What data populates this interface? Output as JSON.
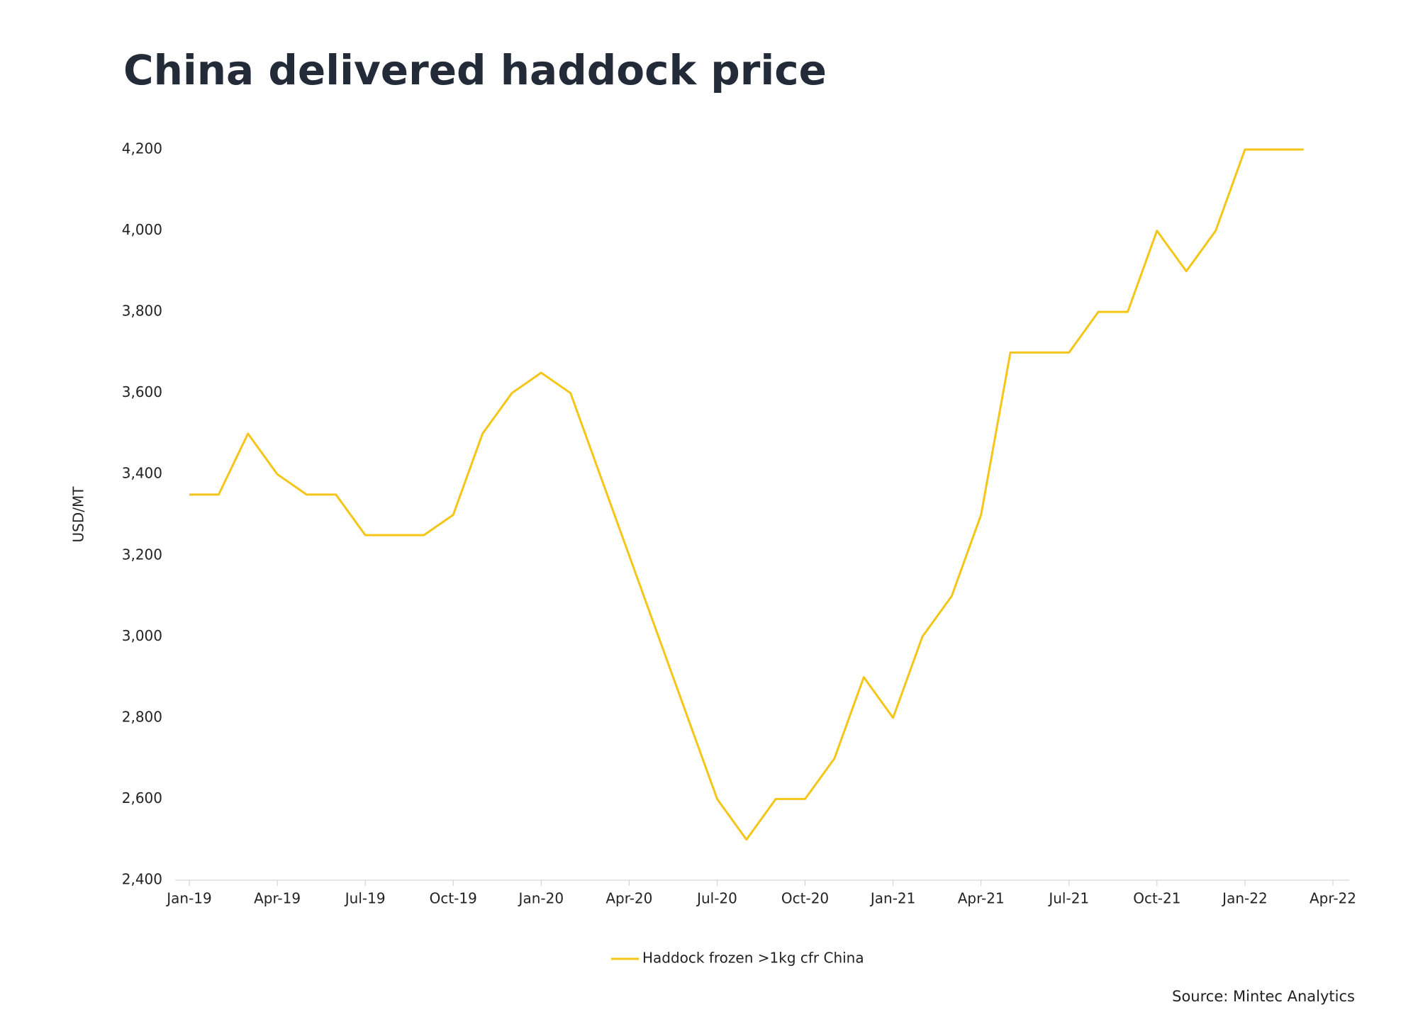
{
  "chart_data": {
    "type": "line",
    "title": "China delivered haddock price",
    "y_label": "USD/MT",
    "source": "Source: Mintec Analytics",
    "x": [
      "2019-01",
      "2019-02",
      "2019-03",
      "2019-04",
      "2019-05",
      "2019-06",
      "2019-07",
      "2019-08",
      "2019-09",
      "2019-10",
      "2019-11",
      "2019-12",
      "2020-01",
      "2020-02",
      "2020-03",
      "2020-04",
      "2020-05",
      "2020-06",
      "2020-07",
      "2020-08",
      "2020-09",
      "2020-10",
      "2020-11",
      "2020-12",
      "2021-01",
      "2021-02",
      "2021-03",
      "2021-04",
      "2021-05",
      "2021-06",
      "2021-07",
      "2021-08",
      "2021-09",
      "2021-10",
      "2021-11",
      "2021-12",
      "2022-01",
      "2022-02",
      "2022-03"
    ],
    "series": [
      {
        "name": "Haddock frozen >1kg cfr China",
        "color": "#f5c518",
        "values": [
          3350,
          3350,
          3500,
          3400,
          3350,
          3350,
          3250,
          3250,
          3250,
          3300,
          3500,
          3600,
          3650,
          3600,
          3400,
          3200,
          3000,
          2800,
          2600,
          2500,
          2600,
          2600,
          2700,
          2900,
          2800,
          3000,
          3100,
          3300,
          3700,
          3700,
          3700,
          3800,
          3800,
          4000,
          3900,
          4000,
          4200,
          4200,
          4200
        ]
      }
    ],
    "xlim": [
      "2019-01",
      "2022-04"
    ],
    "xticks": [
      {
        "value": "2019-01",
        "label": "Jan-19"
      },
      {
        "value": "2019-04",
        "label": "Apr-19"
      },
      {
        "value": "2019-07",
        "label": "Jul-19"
      },
      {
        "value": "2019-10",
        "label": "Oct-19"
      },
      {
        "value": "2020-01",
        "label": "Jan-20"
      },
      {
        "value": "2020-04",
        "label": "Apr-20"
      },
      {
        "value": "2020-07",
        "label": "Jul-20"
      },
      {
        "value": "2020-10",
        "label": "Oct-20"
      },
      {
        "value": "2021-01",
        "label": "Jan-21"
      },
      {
        "value": "2021-04",
        "label": "Apr-21"
      },
      {
        "value": "2021-07",
        "label": "Jul-21"
      },
      {
        "value": "2021-10",
        "label": "Oct-21"
      },
      {
        "value": "2022-01",
        "label": "Jan-22"
      },
      {
        "value": "2022-04",
        "label": "Apr-22"
      }
    ],
    "ylim": [
      2400,
      4200
    ],
    "yticks": [
      {
        "value": 2400,
        "label": "2,400"
      },
      {
        "value": 2600,
        "label": "2,600"
      },
      {
        "value": 2800,
        "label": "2,800"
      },
      {
        "value": 3000,
        "label": "3,000"
      },
      {
        "value": 3200,
        "label": "3,200"
      },
      {
        "value": 3400,
        "label": "3,400"
      },
      {
        "value": 3600,
        "label": "3,600"
      },
      {
        "value": 3800,
        "label": "3,800"
      },
      {
        "value": 4000,
        "label": "4,000"
      },
      {
        "value": 4200,
        "label": "4,200"
      }
    ],
    "grid": false,
    "legend": "bottom"
  }
}
